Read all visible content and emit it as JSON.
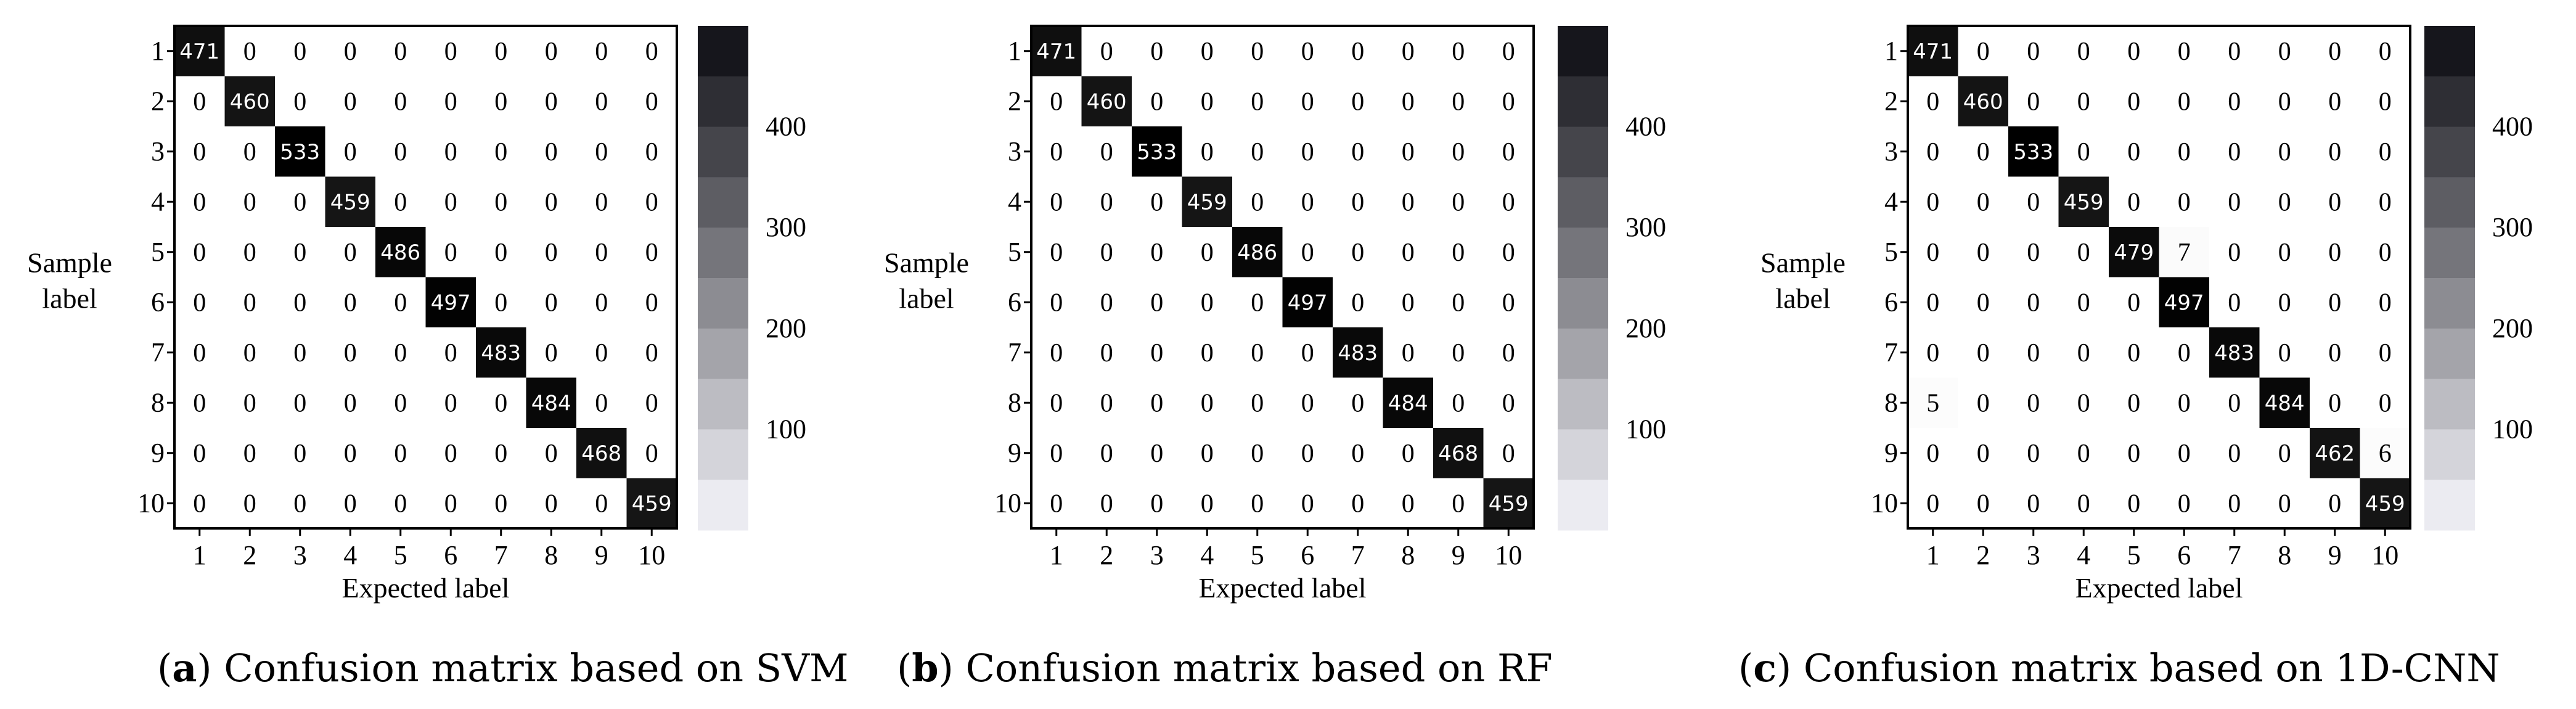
{
  "chart_data": [
    {
      "type": "heatmap",
      "caption_letter": "a",
      "caption_text": ") Confusion matrix based on SVM",
      "ylabel_line1": "Sample",
      "ylabel_line2": "label",
      "xlabel": "Expected label",
      "row_labels": [
        "1",
        "2",
        "3",
        "4",
        "5",
        "6",
        "7",
        "8",
        "9",
        "10"
      ],
      "col_labels": [
        "1",
        "2",
        "3",
        "4",
        "5",
        "6",
        "7",
        "8",
        "9",
        "10"
      ],
      "colorbar_ticks": [
        100,
        200,
        300,
        400
      ],
      "colorbar_range": [
        0,
        500
      ],
      "matrix": [
        [
          471,
          0,
          0,
          0,
          0,
          0,
          0,
          0,
          0,
          0
        ],
        [
          0,
          460,
          0,
          0,
          0,
          0,
          0,
          0,
          0,
          0
        ],
        [
          0,
          0,
          533,
          0,
          0,
          0,
          0,
          0,
          0,
          0
        ],
        [
          0,
          0,
          0,
          459,
          0,
          0,
          0,
          0,
          0,
          0
        ],
        [
          0,
          0,
          0,
          0,
          486,
          0,
          0,
          0,
          0,
          0
        ],
        [
          0,
          0,
          0,
          0,
          0,
          497,
          0,
          0,
          0,
          0
        ],
        [
          0,
          0,
          0,
          0,
          0,
          0,
          483,
          0,
          0,
          0
        ],
        [
          0,
          0,
          0,
          0,
          0,
          0,
          0,
          484,
          0,
          0
        ],
        [
          0,
          0,
          0,
          0,
          0,
          0,
          0,
          0,
          468,
          0
        ],
        [
          0,
          0,
          0,
          0,
          0,
          0,
          0,
          0,
          0,
          459
        ]
      ]
    },
    {
      "type": "heatmap",
      "caption_letter": "b",
      "caption_text": ") Confusion matrix based on RF",
      "ylabel_line1": "Sample",
      "ylabel_line2": "label",
      "xlabel": "Expected label",
      "row_labels": [
        "1",
        "2",
        "3",
        "4",
        "5",
        "6",
        "7",
        "8",
        "9",
        "10"
      ],
      "col_labels": [
        "1",
        "2",
        "3",
        "4",
        "5",
        "6",
        "7",
        "8",
        "9",
        "10"
      ],
      "colorbar_ticks": [
        100,
        200,
        300,
        400
      ],
      "colorbar_range": [
        0,
        500
      ],
      "matrix": [
        [
          471,
          0,
          0,
          0,
          0,
          0,
          0,
          0,
          0,
          0
        ],
        [
          0,
          460,
          0,
          0,
          0,
          0,
          0,
          0,
          0,
          0
        ],
        [
          0,
          0,
          533,
          0,
          0,
          0,
          0,
          0,
          0,
          0
        ],
        [
          0,
          0,
          0,
          459,
          0,
          0,
          0,
          0,
          0,
          0
        ],
        [
          0,
          0,
          0,
          0,
          486,
          0,
          0,
          0,
          0,
          0
        ],
        [
          0,
          0,
          0,
          0,
          0,
          497,
          0,
          0,
          0,
          0
        ],
        [
          0,
          0,
          0,
          0,
          0,
          0,
          483,
          0,
          0,
          0
        ],
        [
          0,
          0,
          0,
          0,
          0,
          0,
          0,
          484,
          0,
          0
        ],
        [
          0,
          0,
          0,
          0,
          0,
          0,
          0,
          0,
          468,
          0
        ],
        [
          0,
          0,
          0,
          0,
          0,
          0,
          0,
          0,
          0,
          459
        ]
      ]
    },
    {
      "type": "heatmap",
      "caption_letter": "c",
      "caption_text": ") Confusion matrix based on 1D-CNN",
      "ylabel_line1": "Sample",
      "ylabel_line2": "label",
      "xlabel": "Expected label",
      "row_labels": [
        "1",
        "2",
        "3",
        "4",
        "5",
        "6",
        "7",
        "8",
        "9",
        "10"
      ],
      "col_labels": [
        "1",
        "2",
        "3",
        "4",
        "5",
        "6",
        "7",
        "8",
        "9",
        "10"
      ],
      "colorbar_ticks": [
        100,
        200,
        300,
        400
      ],
      "colorbar_range": [
        0,
        500
      ],
      "matrix": [
        [
          471,
          0,
          0,
          0,
          0,
          0,
          0,
          0,
          0,
          0
        ],
        [
          0,
          460,
          0,
          0,
          0,
          0,
          0,
          0,
          0,
          0
        ],
        [
          0,
          0,
          533,
          0,
          0,
          0,
          0,
          0,
          0,
          0
        ],
        [
          0,
          0,
          0,
          459,
          0,
          0,
          0,
          0,
          0,
          0
        ],
        [
          0,
          0,
          0,
          0,
          479,
          7,
          0,
          0,
          0,
          0
        ],
        [
          0,
          0,
          0,
          0,
          0,
          497,
          0,
          0,
          0,
          0
        ],
        [
          0,
          0,
          0,
          0,
          0,
          0,
          483,
          0,
          0,
          0
        ],
        [
          5,
          0,
          0,
          0,
          0,
          0,
          0,
          484,
          0,
          0
        ],
        [
          0,
          0,
          0,
          0,
          0,
          0,
          0,
          0,
          462,
          6
        ],
        [
          0,
          0,
          0,
          0,
          0,
          0,
          0,
          0,
          0,
          459
        ]
      ]
    }
  ]
}
